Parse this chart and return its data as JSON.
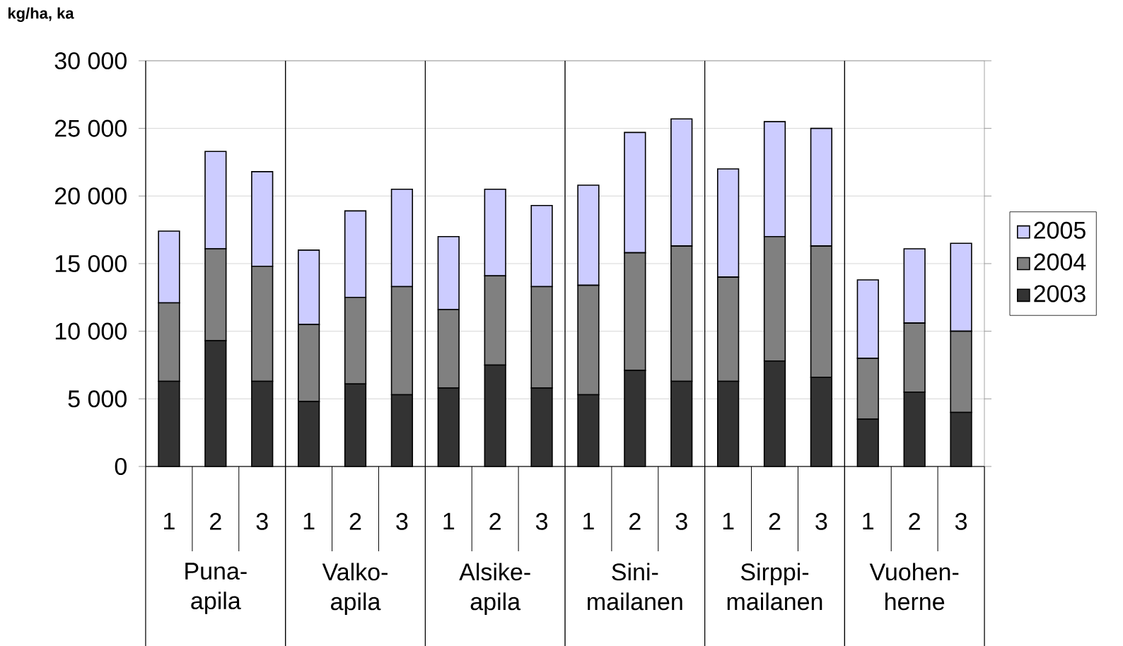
{
  "chart_data": {
    "type": "bar",
    "stacked": true,
    "ylabel": "kg/ha, ka",
    "categories": [
      "1",
      "2",
      "3",
      "1",
      "2",
      "3",
      "1",
      "2",
      "3",
      "1",
      "2",
      "3",
      "1",
      "2",
      "3",
      "1",
      "2",
      "3"
    ],
    "annotations": [
      "Puna-apila",
      "Valko-apila",
      "Alsike-apila",
      "Sini-mailanen",
      "Sirppi-mailanen",
      "Vuohen-herne"
    ],
    "series": [
      {
        "name": "2003",
        "color": "#333333",
        "values": [
          6300,
          9300,
          6300,
          4800,
          6100,
          5300,
          5800,
          7500,
          5800,
          5300,
          7100,
          6300,
          6300,
          7800,
          6600,
          3500,
          5500,
          4000
        ]
      },
      {
        "name": "2004",
        "color": "#808080",
        "values": [
          5800,
          6800,
          8500,
          5700,
          6400,
          8000,
          5800,
          6600,
          7500,
          8100,
          8700,
          10000,
          7700,
          9200,
          9700,
          4500,
          5100,
          6000
        ]
      },
      {
        "name": "2005",
        "color": "#ccccff",
        "values": [
          5300,
          7200,
          7000,
          5500,
          6400,
          7200,
          5400,
          6400,
          6000,
          7400,
          8900,
          9400,
          8000,
          8500,
          8700,
          5800,
          5500,
          6500
        ]
      }
    ],
    "ylim": [
      0,
      30000
    ],
    "yticks": [
      {
        "value": 0,
        "label": "0"
      },
      {
        "value": 5000,
        "label": "5 000"
      },
      {
        "value": 10000,
        "label": "10 000"
      },
      {
        "value": 15000,
        "label": "15 000"
      },
      {
        "value": 20000,
        "label": "20 000"
      },
      {
        "value": 25000,
        "label": "25 000"
      },
      {
        "value": 30000,
        "label": "30 000"
      }
    ],
    "grid": "y",
    "legend": "right"
  }
}
